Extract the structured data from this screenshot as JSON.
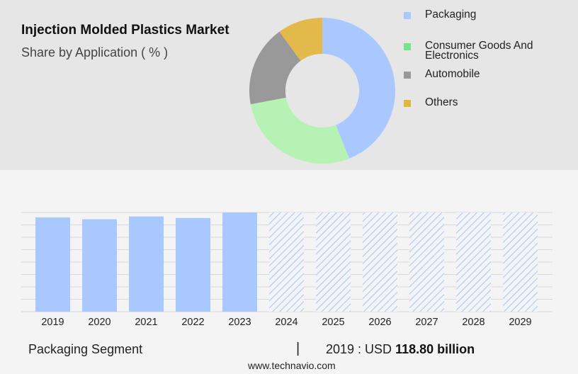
{
  "header": {
    "title": "Injection Molded Plastics Market",
    "subtitle": "Share by Application ( % )"
  },
  "colors": {
    "packaging": "#a8c8ff",
    "consumer_goods": "#b6f2b4",
    "automobile": "#999999",
    "others": "#e4b94c",
    "legend_consumer_goods": "#74e48a",
    "legend_others": "#e2b540",
    "forecast_hatch": "#a8c8ff"
  },
  "chart_data": [
    {
      "type": "pie",
      "variant": "donut",
      "title": "Share by Application ( % )",
      "categories": [
        "Packaging",
        "Consumer Goods And Electronics",
        "Automobile",
        "Others"
      ],
      "values": [
        44,
        28,
        18,
        10
      ],
      "legend_placement": "right"
    },
    {
      "type": "bar",
      "categories": [
        "2019",
        "2020",
        "2021",
        "2022",
        "2023",
        "2024",
        "2025",
        "2026",
        "2027",
        "2028",
        "2029"
      ],
      "values": [
        118.8,
        116.5,
        120.0,
        118.0,
        125.0,
        125.0,
        125.0,
        125.0,
        125.0,
        125.0,
        125.0
      ],
      "forecast_from": "2024",
      "ylim": [
        0,
        125
      ],
      "grid": true,
      "xlabel": "",
      "ylabel": ""
    }
  ],
  "footer": {
    "segment_label": "Packaging Segment",
    "separator": "|",
    "value_prefix": "2019 : USD",
    "value_bold": "118.80 billion",
    "website": "www.technavio.com"
  }
}
